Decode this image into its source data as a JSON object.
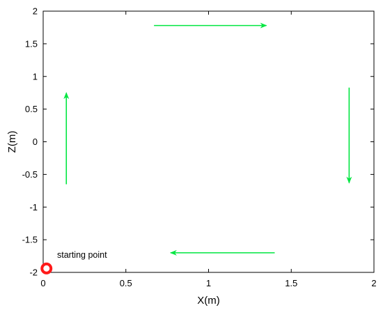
{
  "chart_data": {
    "type": "line",
    "xlabel": "X(m)",
    "ylabel": "Z(m)",
    "xlim": [
      0,
      2
    ],
    "ylim": [
      -2,
      2
    ],
    "x_ticks": [
      "0",
      "0.5",
      "1",
      "1.5",
      "2"
    ],
    "y_ticks": [
      "-2",
      "-1.5",
      "-1",
      "-0.5",
      "0",
      "0.5",
      "1",
      "1.5",
      "2"
    ],
    "grid": false,
    "arrows": [
      {
        "direction": "right",
        "from": [
          0.67,
          1.78
        ],
        "to": [
          1.35,
          1.78
        ]
      },
      {
        "direction": "down",
        "from": [
          1.85,
          0.83
        ],
        "to": [
          1.85,
          -0.63
        ]
      },
      {
        "direction": "left",
        "from": [
          1.4,
          -1.7
        ],
        "to": [
          0.77,
          -1.7
        ]
      },
      {
        "direction": "up",
        "from": [
          0.14,
          -0.65
        ],
        "to": [
          0.14,
          0.75
        ]
      }
    ],
    "starting_point": {
      "x": 0.02,
      "z": -1.94,
      "label": "starting point"
    },
    "colors": {
      "arrow": "#00e640",
      "marker": "#ff1a1a",
      "axes": "#000000"
    }
  }
}
